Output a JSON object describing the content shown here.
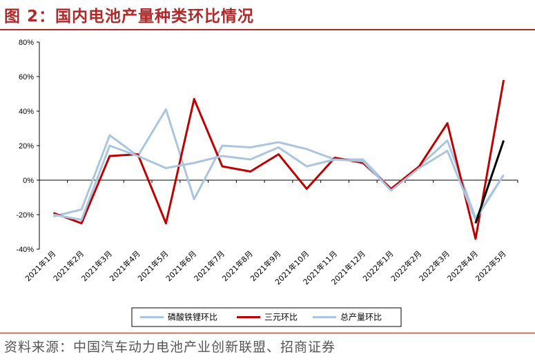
{
  "figure": {
    "title": "图 2：国内电池产量种类环比情况",
    "source": "资料来源：中国汽车动力电池产业创新联盟、招商证券"
  },
  "chart_data": {
    "type": "line",
    "categories": [
      "2021年1月",
      "2021年2月",
      "2021年3月",
      "2021年4月",
      "2021年5月",
      "2021年6月",
      "2021年7月",
      "2021年8月",
      "2021年9月",
      "2021年10月",
      "2021年11月",
      "2021年12月",
      "2022年1月",
      "2022年2月",
      "2022年3月",
      "2022年4月",
      "2022年5月"
    ],
    "y_ticks": [
      "-40%",
      "-20%",
      "0%",
      "20%",
      "40%",
      "60%",
      "80%"
    ],
    "ylim": [
      -40,
      80
    ],
    "y_unit": "%",
    "grid": false,
    "legend_position": "bottom",
    "series": [
      {
        "name": "磷酸铁锂环比",
        "color": "#a9c5e0",
        "values": [
          -21,
          -17,
          26,
          14,
          41,
          -11,
          20,
          19,
          22,
          18,
          12,
          12,
          -5,
          8,
          23,
          -22,
          3
        ]
      },
      {
        "name": "三元环比",
        "color": "#c00000",
        "values": [
          -19,
          -25,
          14,
          15,
          -25,
          47,
          8,
          5,
          15,
          -5,
          13,
          10,
          -5,
          8,
          33,
          -34,
          58
        ]
      },
      {
        "name": "总产量环比",
        "color": "#a9c5e0",
        "values": [
          -20,
          -23,
          20,
          14,
          7,
          10,
          14,
          12,
          19,
          8,
          12,
          11,
          -6,
          7,
          17,
          -23,
          3
        ]
      }
    ],
    "overlay": {
      "color": "#000000",
      "from_index": 15,
      "to_index": 16,
      "values": [
        -25,
        23
      ]
    }
  }
}
